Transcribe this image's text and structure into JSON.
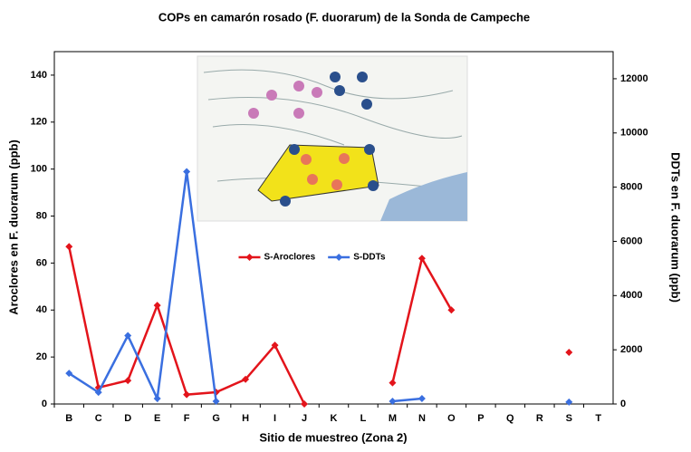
{
  "chart_data": {
    "type": "line",
    "title": "COPs en camarón rosado (F. duorarum) de la Sonda de Campeche",
    "x_label": "Sitio de muestreo (Zona 2)",
    "y_label": "Aroclores en F. duorarum (ppb)",
    "y2_label": "DDTs en F. duorarum (ppb)",
    "categories": [
      "B",
      "C",
      "D",
      "E",
      "F",
      "G",
      "H",
      "I",
      "J",
      "K",
      "L",
      "M",
      "N",
      "O",
      "P",
      "Q",
      "R",
      "S",
      "T"
    ],
    "ylim": [
      0,
      150
    ],
    "yticks": [
      0,
      20,
      40,
      60,
      80,
      100,
      120,
      140
    ],
    "y2lim": [
      0,
      13000
    ],
    "y2ticks": [
      0,
      2000,
      4000,
      6000,
      8000,
      10000,
      12000
    ],
    "legend": "center",
    "series": [
      {
        "name": "S-Aroclores",
        "color": "#e3141b",
        "values": [
          67,
          7,
          10,
          42,
          4,
          5,
          10.5,
          25,
          0,
          null,
          null,
          9,
          62,
          40,
          null,
          null,
          null,
          22,
          null
        ]
      },
      {
        "name": "S-DDTs",
        "color": "#3a6fe0",
        "axis": "y2",
        "values": [
          1130,
          430,
          2525,
          200,
          8570,
          100,
          null,
          null,
          null,
          null,
          null,
          100,
          200,
          null,
          null,
          null,
          null,
          70,
          null
        ]
      }
    ]
  }
}
